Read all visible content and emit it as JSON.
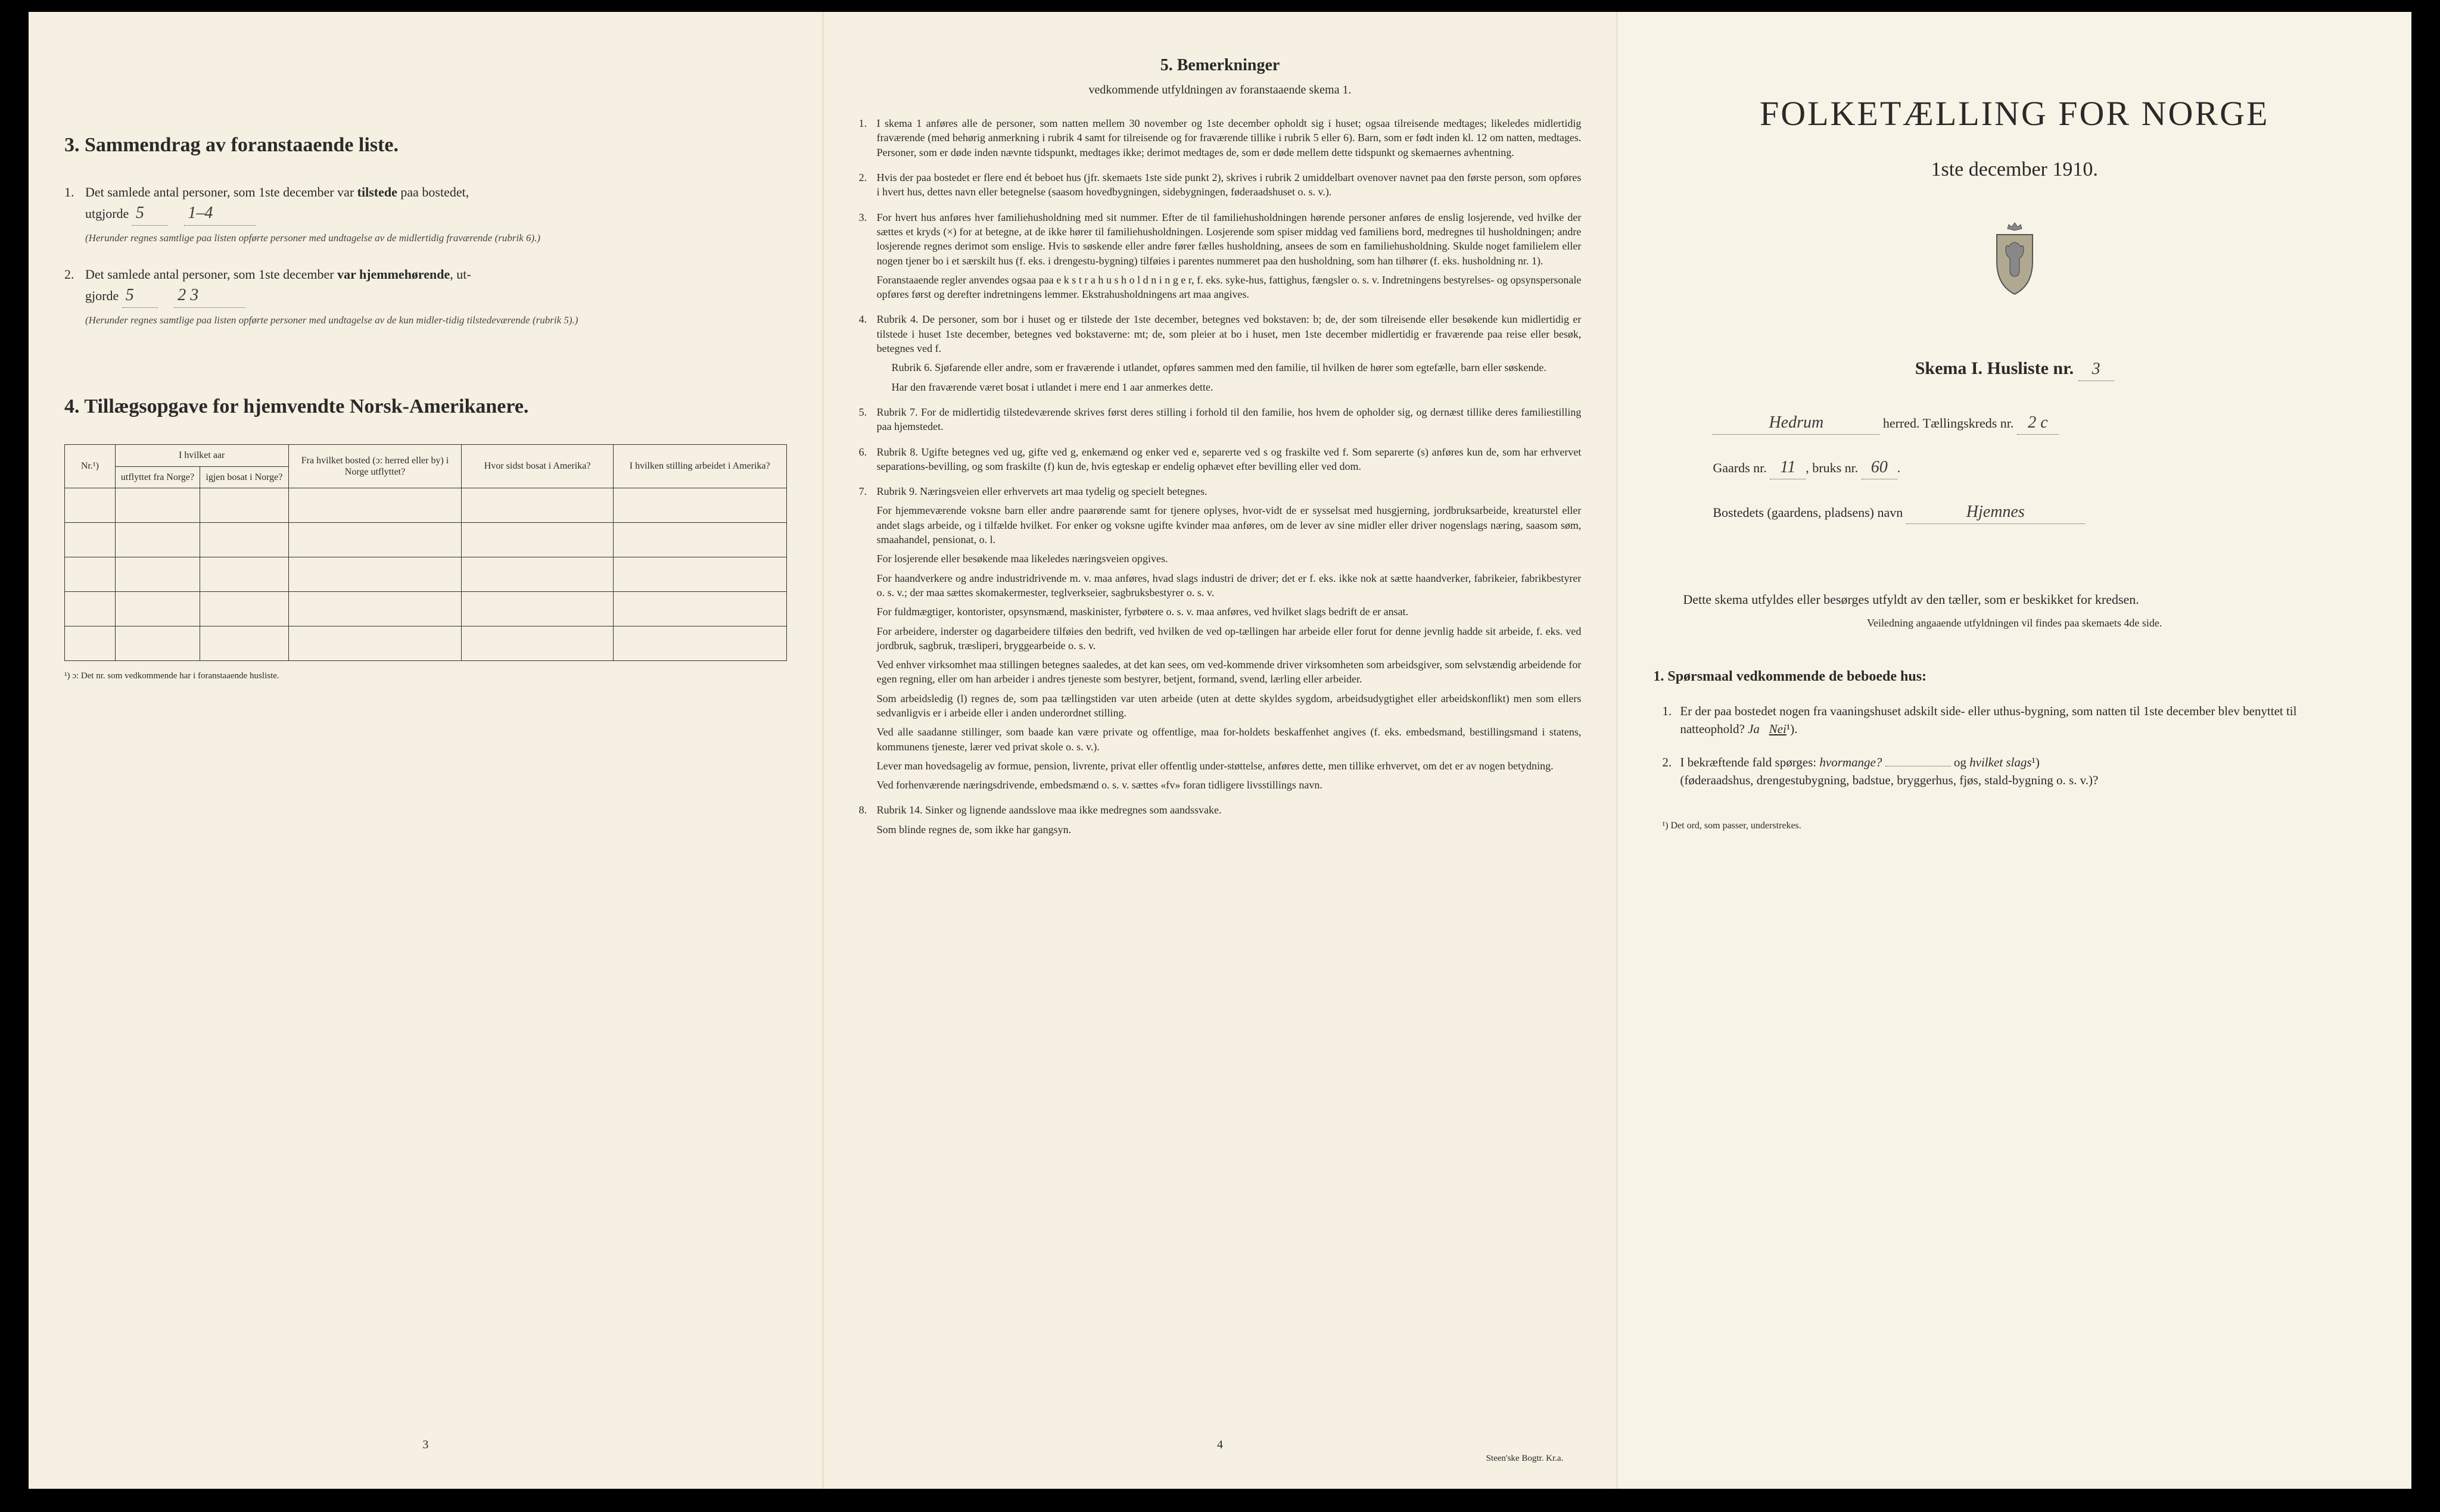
{
  "page_left": {
    "section3": {
      "heading": "3.  Sammendrag av foranstaaende liste.",
      "item1": {
        "num": "1.",
        "text_before": "Det samlede antal personer, som 1ste december var ",
        "bold_word": "tilstede",
        "text_after": " paa bostedet,",
        "line2_prefix": "utgjorde",
        "fill1": "5",
        "fill2": "1–4",
        "note": "(Herunder regnes samtlige paa listen opførte personer med undtagelse av de midlertidig fraværende (rubrik 6).)"
      },
      "item2": {
        "num": "2.",
        "text_before": "Det samlede antal personer, som 1ste december ",
        "bold_word": "var hjemmehørende",
        "text_after": ", ut-",
        "line2_prefix": "gjorde",
        "fill1": "5",
        "fill2": "2  3",
        "note": "(Herunder regnes samtlige paa listen opførte personer med undtagelse av de kun midler-tidig tilstedeværende (rubrik 5).)"
      }
    },
    "section4": {
      "heading": "4.  Tillægsopgave for hjemvendte Norsk-Amerikanere.",
      "table": {
        "headers": [
          "Nr.¹)",
          "I hvilket aar",
          "Fra hvilket bosted (ɔ: herred eller by) i Norge utflyttet?",
          "Hvor sidst bosat i Amerika?",
          "I hvilken stilling arbeidet i Amerika?"
        ],
        "subheaders": [
          "",
          "utflyttet fra Norge?",
          "igjen bosat i Norge?",
          "",
          "",
          ""
        ],
        "rows": 5
      },
      "footnote": "¹) ɔ: Det nr. som vedkommende har i foranstaaende husliste."
    },
    "page_number": "3"
  },
  "page_middle": {
    "heading": "5.  Bemerkninger",
    "subheading": "vedkommende utfyldningen av foranstaaende skema 1.",
    "remarks": [
      {
        "num": "1.",
        "text": "I skema 1 anføres alle de personer, som natten mellem 30 november og 1ste december opholdt sig i huset; ogsaa tilreisende medtages; likeledes midlertidig fraværende (med behørig anmerkning i rubrik 4 samt for tilreisende og for fraværende tillike i rubrik 5 eller 6). Barn, som er født inden kl. 12 om natten, medtages. Personer, som er døde inden nævnte tidspunkt, medtages ikke; derimot medtages de, som er døde mellem dette tidspunkt og skemaernes avhentning."
      },
      {
        "num": "2.",
        "text": "Hvis der paa bostedet er flere end ét beboet hus (jfr. skemaets 1ste side punkt 2), skrives i rubrik 2 umiddelbart ovenover navnet paa den første person, som opføres i hvert hus, dettes navn eller betegnelse (saasom hovedbygningen, sidebygningen, føderaadshuset o. s. v.)."
      },
      {
        "num": "3.",
        "text": "For hvert hus anføres hver familiehusholdning med sit nummer. Efter de til familiehusholdningen hørende personer anføres de enslig losjerende, ved hvilke der sættes et kryds (×) for at betegne, at de ikke hører til familiehusholdningen. Losjerende som spiser middag ved familiens bord, medregnes til husholdningen; andre losjerende regnes derimot som enslige. Hvis to søskende eller andre fører fælles husholdning, ansees de som en familiehusholdning. Skulde noget familielem eller nogen tjener bo i et særskilt hus (f. eks. i drengestu-bygning) tilføies i parentes nummeret paa den husholdning, som han tilhører (f. eks. husholdning nr. 1).",
        "extra_paras": [
          "Foranstaaende regler anvendes ogsaa paa e k s t r a h u s h o l d n i n g e r, f. eks. syke-hus, fattighus, fængsler o. s. v. Indretningens bestyrelses- og opsynspersonale opføres først og derefter indretningens lemmer. Ekstrahusholdningens art maa angives."
        ]
      },
      {
        "num": "4.",
        "text": "Rubrik 4. De personer, som bor i huset og er tilstede der 1ste december, betegnes ved bokstaven: b; de, der som tilreisende eller besøkende kun midlertidig er tilstede i huset 1ste december, betegnes ved bokstaverne: mt; de, som pleier at bo i huset, men 1ste december midlertidig er fraværende paa reise eller besøk, betegnes ved f.",
        "subs": [
          "Rubrik 6. Sjøfarende eller andre, som er fraværende i utlandet, opføres sammen med den familie, til hvilken de hører som egtefælle, barn eller søskende.",
          "Har den fraværende været bosat i utlandet i mere end 1 aar anmerkes dette."
        ]
      },
      {
        "num": "5.",
        "text": "Rubrik 7. For de midlertidig tilstedeværende skrives først deres stilling i forhold til den familie, hos hvem de opholder sig, og dernæst tillike deres familiestilling paa hjemstedet."
      },
      {
        "num": "6.",
        "text": "Rubrik 8. Ugifte betegnes ved ug, gifte ved g, enkemænd og enker ved e, separerte ved s og fraskilte ved f. Som separerte (s) anføres kun de, som har erhvervet separations-bevilling, og som fraskilte (f) kun de, hvis egteskap er endelig ophævet efter bevilling eller ved dom."
      },
      {
        "num": "7.",
        "text": "Rubrik 9. Næringsveien eller erhvervets art maa tydelig og specielt betegnes.",
        "extra_paras": [
          "For hjemmeværende voksne barn eller andre paarørende samt for tjenere oplyses, hvor-vidt de er sysselsat med husgjerning, jordbruksarbeide, kreaturstel eller andet slags arbeide, og i tilfælde hvilket. For enker og voksne ugifte kvinder maa anføres, om de lever av sine midler eller driver nogenslags næring, saasom søm, smaahandel, pensionat, o. l.",
          "For losjerende eller besøkende maa likeledes næringsveien opgives.",
          "For haandverkere og andre industridrivende m. v. maa anføres, hvad slags industri de driver; det er f. eks. ikke nok at sætte haandverker, fabrikeier, fabrikbestyrer o. s. v.; der maa sættes skomakermester, teglverkseier, sagbruksbestyrer o. s. v.",
          "For fuldmægtiger, kontorister, opsynsmænd, maskinister, fyrbøtere o. s. v. maa anføres, ved hvilket slags bedrift de er ansat.",
          "For arbeidere, inderster og dagarbeidere tilføies den bedrift, ved hvilken de ved op-tællingen har arbeide eller forut for denne jevnlig hadde sit arbeide, f. eks. ved jordbruk, sagbruk, træsliperi, bryggearbeide o. s. v.",
          "Ved enhver virksomhet maa stillingen betegnes saaledes, at det kan sees, om ved-kommende driver virksomheten som arbeidsgiver, som selvstændig arbeidende for egen regning, eller om han arbeider i andres tjeneste som bestyrer, betjent, formand, svend, lærling eller arbeider.",
          "Som arbeidsledig (l) regnes de, som paa tællingstiden var uten arbeide (uten at dette skyldes sygdom, arbeidsudygtighet eller arbeidskonflikt) men som ellers sedvanligvis er i arbeide eller i anden underordnet stilling.",
          "Ved alle saadanne stillinger, som baade kan være private og offentlige, maa for-holdets beskaffenhet angives (f. eks. embedsmand, bestillingsmand i statens, kommunens tjeneste, lærer ved privat skole o. s. v.).",
          "Lever man hovedsagelig av formue, pension, livrente, privat eller offentlig under-støttelse, anføres dette, men tillike erhvervet, om det er av nogen betydning.",
          "Ved forhenværende næringsdrivende, embedsmænd o. s. v. sættes «fv» foran tidligere livsstillings navn."
        ]
      },
      {
        "num": "8.",
        "text": "Rubrik 14. Sinker og lignende aandsslove maa ikke medregnes som aandssvake.",
        "extra_paras": [
          "Som blinde regnes de, som ikke har gangsyn."
        ]
      }
    ],
    "page_number": "4",
    "printer": "Steen'ske Bogtr. Kr.a."
  },
  "page_right": {
    "main_title": "FOLKETÆLLING FOR NORGE",
    "date_title": "1ste december 1910.",
    "skema_label": "Skema I.  Husliste nr.",
    "skema_nr": "3",
    "herred_value": "Hedrum",
    "herred_label": "herred.  Tællingskreds nr.",
    "kreds_nr": "2 c",
    "gaards_label": "Gaards nr.",
    "gaards_nr": "11",
    "bruks_label": ", bruks nr.",
    "bruks_nr": "60",
    "bosted_label": "Bostedets (gaardens, pladsens) navn",
    "bosted_value": "Hjemnes",
    "instruction": "Dette skema utfyldes eller besørges utfyldt av den tæller, som er beskikket for kredsen.",
    "instruction_sub": "Veiledning angaaende utfyldningen vil findes paa skemaets 4de side.",
    "q_heading": "1. Spørsmaal vedkommende de beboede hus:",
    "q1": {
      "num": "1.",
      "text": "Er der paa bostedet nogen fra vaaningshuset adskilt side- eller uthus-bygning, som natten til 1ste december blev benyttet til natteophold?    ",
      "ja": "Ja",
      "nei": "Nei",
      "sup": "¹)."
    },
    "q2": {
      "num": "2.",
      "text_a": "I bekræftende fald spørges: ",
      "i1": "hvormange?",
      "text_b": "og ",
      "i2": "hvilket slags",
      "sup": "¹)",
      "text_c": "(føderaadshus, drengestubygning, badstue, bryggerhus, fjøs, stald-bygning o. s. v.)?"
    },
    "footnote": "¹) Det ord, som passer, understrekes."
  }
}
